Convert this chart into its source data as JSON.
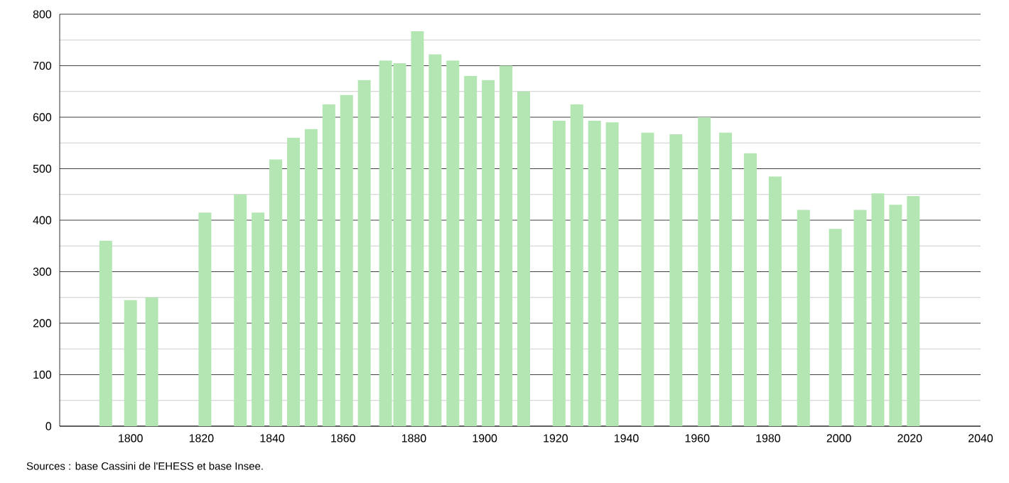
{
  "chart_data": {
    "type": "bar",
    "x": [
      1793,
      1800,
      1806,
      1821,
      1831,
      1836,
      1841,
      1846,
      1851,
      1856,
      1861,
      1866,
      1872,
      1876,
      1881,
      1886,
      1891,
      1896,
      1901,
      1906,
      1911,
      1921,
      1926,
      1931,
      1936,
      1946,
      1954,
      1962,
      1968,
      1975,
      1982,
      1990,
      1999,
      2006,
      2011,
      2016,
      2021
    ],
    "values": [
      360,
      245,
      250,
      415,
      450,
      415,
      518,
      560,
      577,
      625,
      643,
      672,
      710,
      705,
      767,
      722,
      710,
      680,
      672,
      700,
      650,
      593,
      625,
      593,
      590,
      570,
      567,
      600,
      570,
      530,
      485,
      420,
      383,
      420,
      452,
      430,
      447
    ],
    "color": "#b3e6b3",
    "xlim": [
      1780,
      2040
    ],
    "xticks": [
      1800,
      1820,
      1840,
      1860,
      1880,
      1900,
      1920,
      1940,
      1960,
      1980,
      2000,
      2020,
      2040
    ],
    "ylim": [
      0,
      800
    ],
    "yticks": [
      0,
      {
        "value": 50,
        "label": null
      },
      100,
      {
        "value": 150,
        "label": null
      },
      200,
      {
        "value": 250,
        "label": null
      },
      300,
      {
        "value": 350,
        "label": null
      },
      400,
      {
        "value": 450,
        "label": null
      },
      500,
      {
        "value": 550,
        "label": null
      },
      600,
      {
        "value": 650,
        "label": null
      },
      700,
      {
        "value": 750,
        "label": null
      },
      800
    ],
    "grid": "y",
    "annotations": [
      "Sources : base Cassini de l'EHESS et base Insee."
    ]
  }
}
